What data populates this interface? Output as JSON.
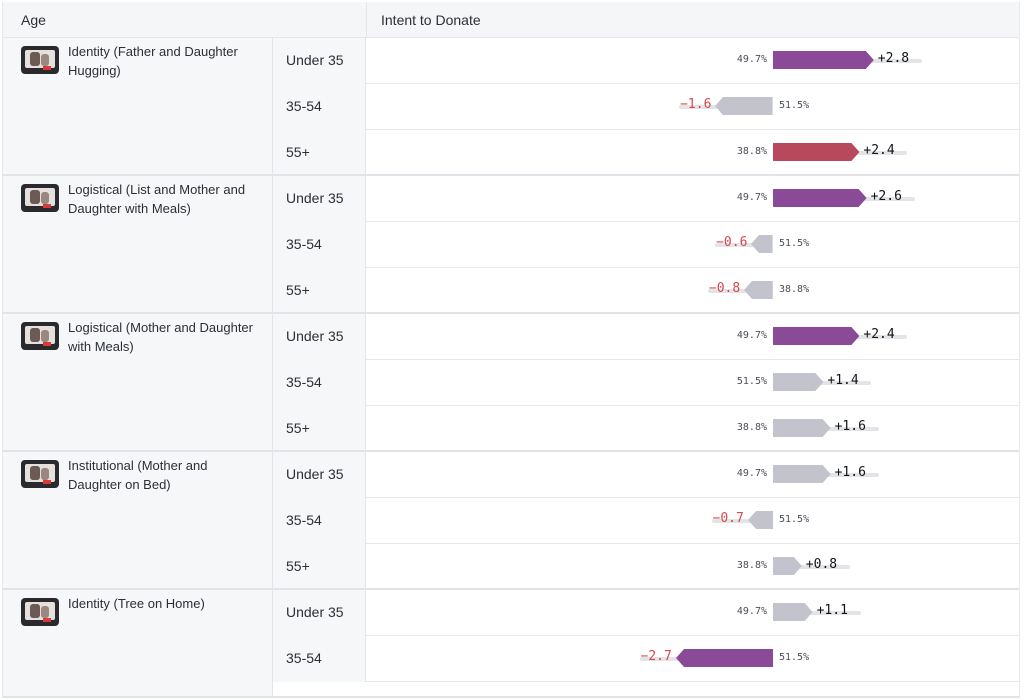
{
  "header": {
    "age": "Age",
    "intent": "Intent to Donate"
  },
  "colors": {
    "purple": "#8a4a97",
    "red": "#b8485c",
    "gray": "#c3c3ce",
    "neg_text": "#d94848",
    "track": "#e3e4e8"
  },
  "groups": [
    {
      "name": "Identity (Father and Daughter Hugging)",
      "thumb_icon": "family-photo-thumbnail",
      "rows": [
        {
          "age": "Under 35",
          "base": "49.7%",
          "delta": "+2.8",
          "value": 2.8,
          "color": "purple"
        },
        {
          "age": "35-54",
          "base": "51.5%",
          "delta": "−1.6",
          "value": -1.6,
          "color": "gray"
        },
        {
          "age": "55+",
          "base": "38.8%",
          "delta": "+2.4",
          "value": 2.4,
          "color": "red"
        }
      ]
    },
    {
      "name": "Logistical (List and Mother and Daughter with Meals)",
      "thumb_icon": "meal-photo-thumbnail",
      "rows": [
        {
          "age": "Under 35",
          "base": "49.7%",
          "delta": "+2.6",
          "value": 2.6,
          "color": "purple"
        },
        {
          "age": "35-54",
          "base": "51.5%",
          "delta": "−0.6",
          "value": -0.6,
          "color": "gray"
        },
        {
          "age": "55+",
          "base": "38.8%",
          "delta": "−0.8",
          "value": -0.8,
          "color": "gray"
        }
      ]
    },
    {
      "name": "Logistical (Mother and Daughter with Meals)",
      "thumb_icon": "meal-photo-thumbnail",
      "rows": [
        {
          "age": "Under 35",
          "base": "49.7%",
          "delta": "+2.4",
          "value": 2.4,
          "color": "purple"
        },
        {
          "age": "35-54",
          "base": "51.5%",
          "delta": "+1.4",
          "value": 1.4,
          "color": "gray"
        },
        {
          "age": "55+",
          "base": "38.8%",
          "delta": "+1.6",
          "value": 1.6,
          "color": "gray"
        }
      ]
    },
    {
      "name": "Institutional (Mother and Daughter on Bed)",
      "thumb_icon": "bed-photo-thumbnail",
      "rows": [
        {
          "age": "Under 35",
          "base": "49.7%",
          "delta": "+1.6",
          "value": 1.6,
          "color": "gray"
        },
        {
          "age": "35-54",
          "base": "51.5%",
          "delta": "−0.7",
          "value": -0.7,
          "color": "gray"
        },
        {
          "age": "55+",
          "base": "38.8%",
          "delta": "+0.8",
          "value": 0.8,
          "color": "gray"
        }
      ]
    },
    {
      "name": "Identity (Tree on Home)",
      "thumb_icon": "house-photo-thumbnail",
      "rows": [
        {
          "age": "Under 35",
          "base": "49.7%",
          "delta": "+1.1",
          "value": 1.1,
          "color": "gray"
        },
        {
          "age": "35-54",
          "base": "51.5%",
          "delta": "−2.7",
          "value": -2.7,
          "color": "purple"
        }
      ]
    }
  ]
}
